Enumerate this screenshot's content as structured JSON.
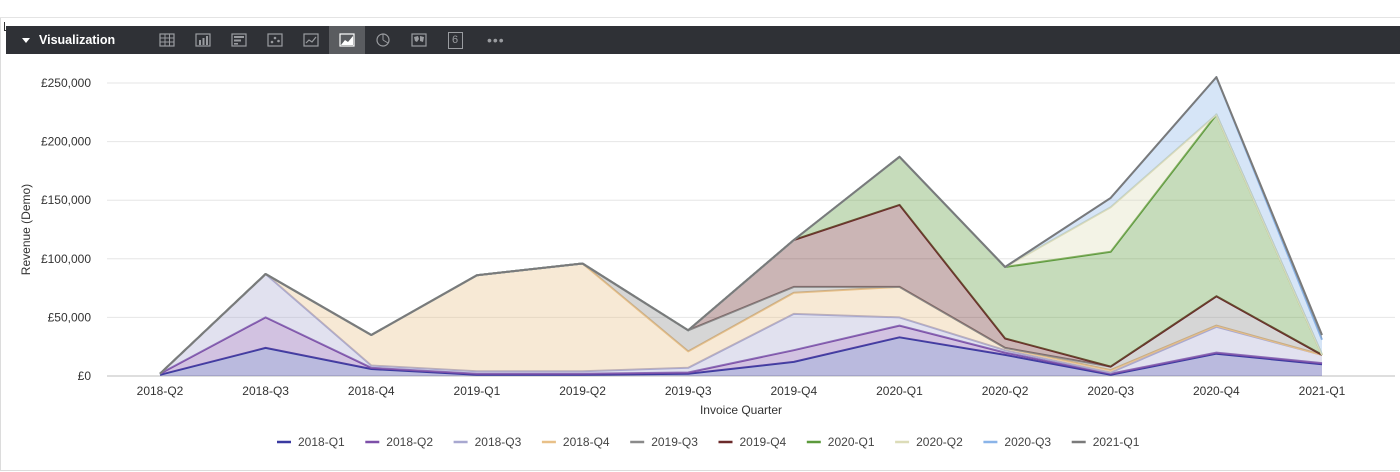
{
  "toolbar": {
    "title": "Visualization",
    "icons": [
      "table-icon",
      "column-chart-icon",
      "bar-chart-icon",
      "scatter-chart-icon",
      "line-chart-icon",
      "area-chart-icon",
      "pie-chart-icon",
      "map-icon",
      "single-value-icon"
    ],
    "active_icon": "area-chart-icon",
    "single_value_label": "6",
    "more_label": "•••"
  },
  "chart_data": {
    "type": "area",
    "stacked": true,
    "xlabel": "Invoice Quarter",
    "ylabel": "Revenue (Demo)",
    "ylim": [
      0,
      250000
    ],
    "yticks": [
      0,
      50000,
      100000,
      150000,
      200000,
      250000
    ],
    "ytick_labels": [
      "£0",
      "£50,000",
      "£100,000",
      "£150,000",
      "£200,000",
      "£250,000"
    ],
    "grid": true,
    "legend_position": "bottom",
    "categories": [
      "2018-Q2",
      "2018-Q3",
      "2018-Q4",
      "2019-Q1",
      "2019-Q2",
      "2019-Q3",
      "2019-Q4",
      "2020-Q1",
      "2020-Q2",
      "2020-Q3",
      "2020-Q4",
      "2021-Q1"
    ],
    "series": [
      {
        "name": "2018-Q1",
        "color": "#3a3aa0",
        "values": [
          1000,
          24000,
          6000,
          1000,
          1000,
          2000,
          12000,
          33000,
          18000,
          1000,
          19000,
          10000
        ]
      },
      {
        "name": "2018-Q2",
        "color": "#7d4fa8",
        "values": [
          1000,
          26000,
          1000,
          1000,
          1000,
          1000,
          10000,
          10000,
          2000,
          1000,
          1000,
          1000
        ]
      },
      {
        "name": "2018-Q3",
        "color": "#a8a8d0",
        "values": [
          0,
          37000,
          2000,
          2000,
          2000,
          4000,
          31000,
          7000,
          2000,
          1000,
          22000,
          7000
        ]
      },
      {
        "name": "2018-Q4",
        "color": "#e8c088",
        "values": [
          0,
          0,
          26000,
          82000,
          92000,
          14000,
          18000,
          26000,
          2000,
          2000,
          1000,
          0
        ]
      },
      {
        "name": "2019-Q3",
        "color": "#8a8a8a",
        "values": [
          0,
          0,
          0,
          0,
          0,
          18000,
          5000,
          0,
          0,
          3000,
          25000,
          0
        ]
      },
      {
        "name": "2019-Q4",
        "color": "#6b2a2a",
        "values": [
          0,
          0,
          0,
          0,
          0,
          0,
          40000,
          70000,
          8000,
          0,
          0,
          0
        ]
      },
      {
        "name": "2020-Q1",
        "color": "#5c9a3c",
        "values": [
          0,
          0,
          0,
          0,
          0,
          0,
          0,
          41000,
          61000,
          98000,
          155000,
          0
        ]
      },
      {
        "name": "2020-Q2",
        "color": "#dcdcb8",
        "values": [
          0,
          0,
          0,
          0,
          0,
          0,
          0,
          0,
          0,
          38000,
          0,
          0
        ]
      },
      {
        "name": "2020-Q3",
        "color": "#8ab4e8",
        "values": [
          0,
          0,
          0,
          0,
          0,
          0,
          0,
          0,
          0,
          8000,
          32000,
          13000
        ]
      },
      {
        "name": "2021-Q1",
        "color": "#7a7a7a",
        "values": [
          0,
          0,
          0,
          0,
          0,
          0,
          0,
          0,
          0,
          0,
          0,
          4000
        ]
      }
    ]
  }
}
